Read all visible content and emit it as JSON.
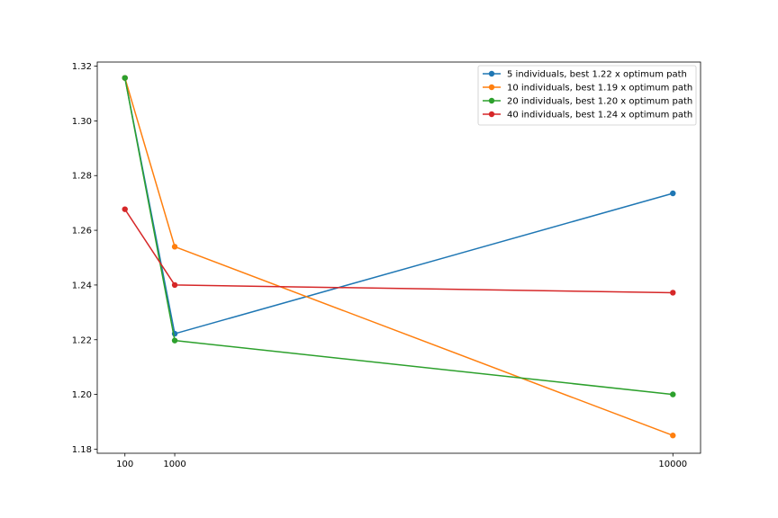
{
  "chart_data": {
    "type": "line",
    "title": "",
    "xlabel": "",
    "ylabel": "",
    "x": [
      100,
      1000,
      10000
    ],
    "xticks": [
      "100",
      "1000",
      "10000"
    ],
    "yticks": [
      "1.18",
      "1.20",
      "1.22",
      "1.24",
      "1.26",
      "1.28",
      "1.30",
      "1.32"
    ],
    "xlim": [
      -400,
      10500
    ],
    "ylim": [
      1.1785,
      1.3215
    ],
    "grid": false,
    "legend_position": "top-right",
    "series": [
      {
        "name": "5 individuals, best 1.22 x optimum path",
        "color": "#1f77b4",
        "values": [
          1.3157,
          1.2222,
          1.2735
        ]
      },
      {
        "name": "10 individuals, best 1.19 x optimum path",
        "color": "#ff7f0e",
        "values": [
          1.3157,
          1.254,
          1.185
        ]
      },
      {
        "name": "20 individuals, best 1.20 x optimum path",
        "color": "#2ca02c",
        "values": [
          1.3157,
          1.2197,
          1.2
        ]
      },
      {
        "name": "40 individuals, best 1.24 x optimum path",
        "color": "#d62728",
        "values": [
          1.2677,
          1.24,
          1.2372
        ]
      }
    ]
  }
}
